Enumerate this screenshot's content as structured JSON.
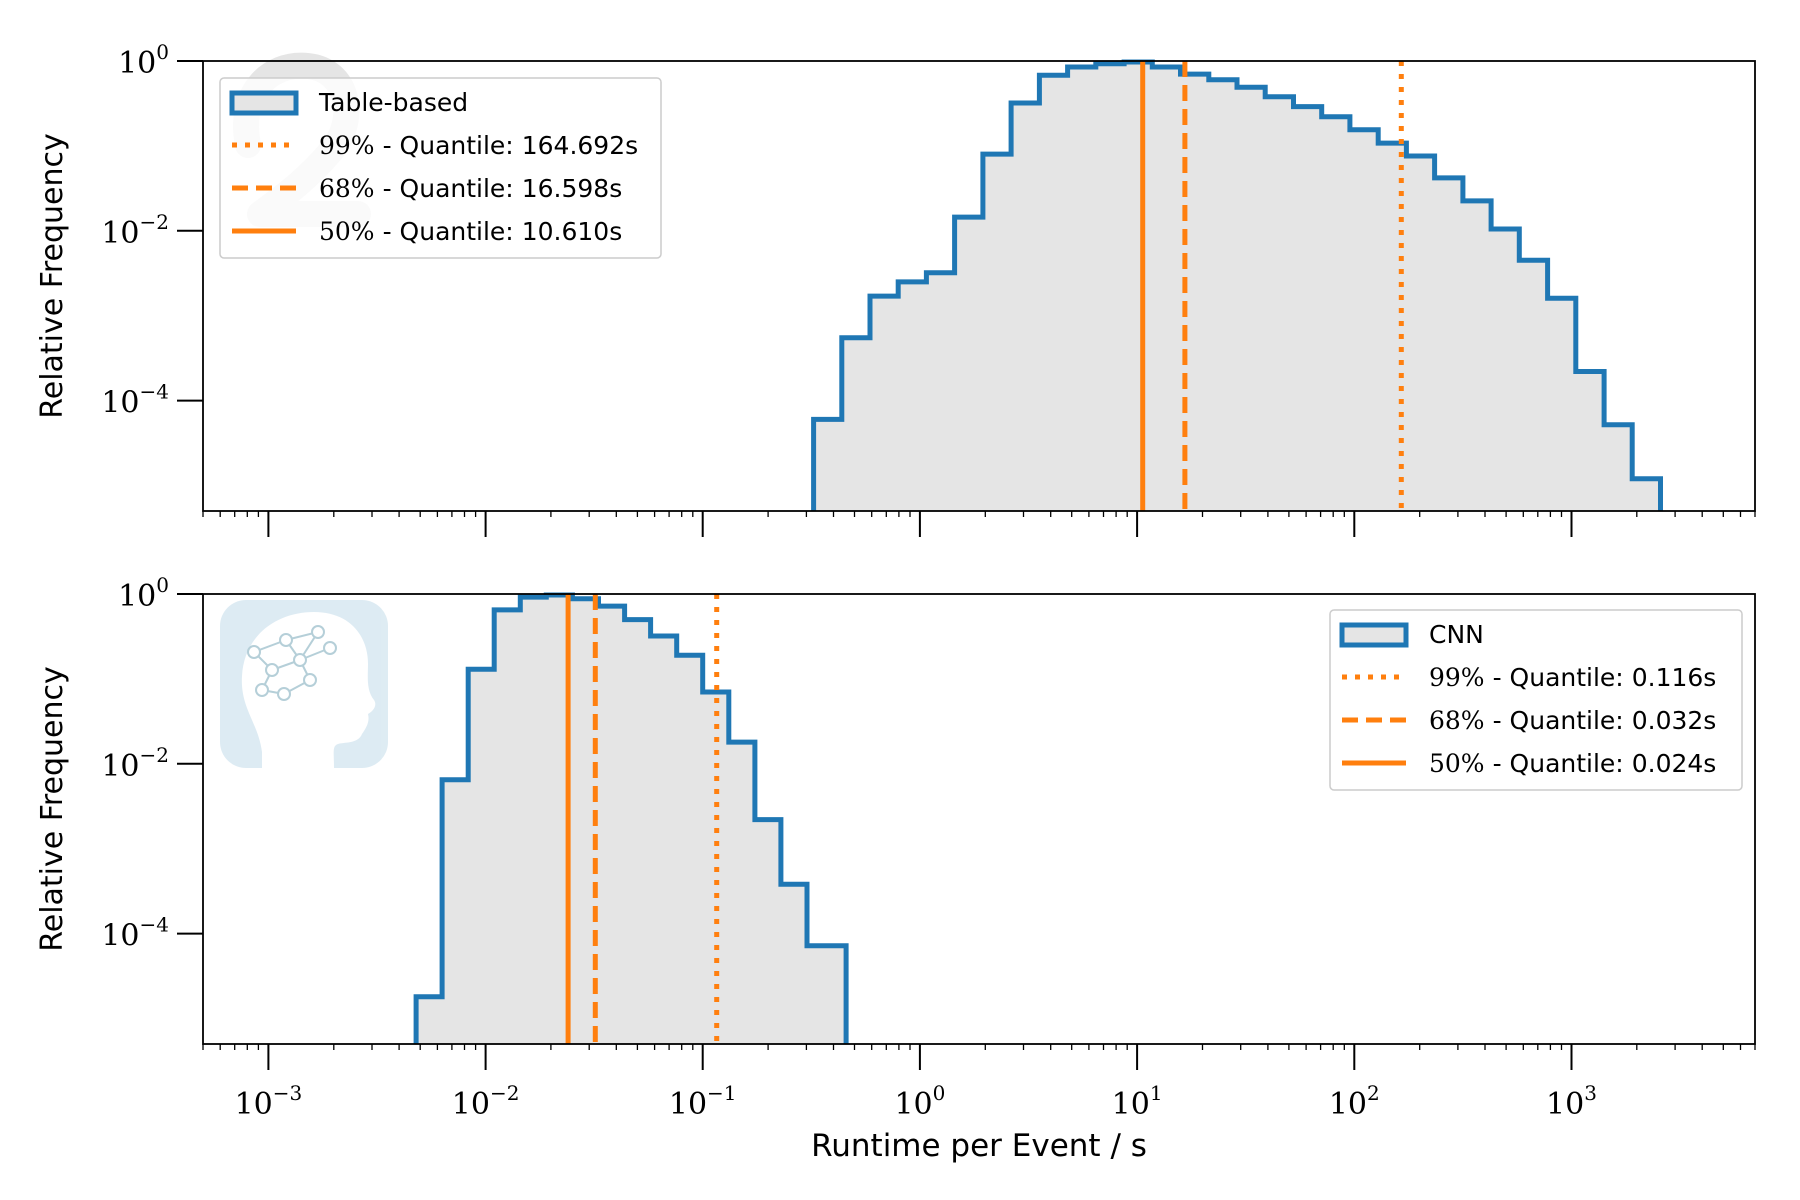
{
  "chart_data": [
    {
      "type": "histogram",
      "xscale": "log",
      "yscale": "log",
      "xlim": [
        0.0005,
        7000
      ],
      "ylim": [
        5e-06,
        1
      ],
      "xlabel": "",
      "ylabel": "Relative Frequency",
      "x_ticks": [
        "10^-3",
        "10^-2",
        "10^-1",
        "10^0",
        "10^1",
        "10^2",
        "10^3"
      ],
      "y_ticks": [
        "10^0",
        "10^-2",
        "10^-4"
      ],
      "legend_position": "upper left",
      "fill_color": "#e5e5e5",
      "edge_color": "#1f77b4",
      "quantile_color": "#ff7f0e",
      "series": [
        {
          "name": "Table-based",
          "bin_edges": [
            0.324,
            0.437,
            0.589,
            0.794,
            1.071,
            1.445,
            1.95,
            2.63,
            3.548,
            4.786,
            6.457,
            8.71,
            11.75,
            15.85,
            21.38,
            28.84,
            38.9,
            52.48,
            70.79,
            95.5,
            128.8,
            173.8,
            234.4,
            316.2,
            426.6,
            575.4,
            776.2,
            1047,
            1413,
            1905,
            2570
          ],
          "values": [
            6e-05,
            0.00055,
            0.0017,
            0.0025,
            0.0032,
            0.0145,
            0.08,
            0.32,
            0.68,
            0.85,
            0.93,
            0.98,
            0.85,
            0.7,
            0.6,
            0.49,
            0.38,
            0.29,
            0.22,
            0.155,
            0.108,
            0.076,
            0.042,
            0.0225,
            0.0105,
            0.0045,
            0.0016,
            0.00022,
            5.2e-05,
            1.2e-05
          ]
        }
      ],
      "quantiles": [
        {
          "label": "99%",
          "text": "- Quantile:",
          "value_label": "164.692s",
          "value": 164.692,
          "style": "dotted"
        },
        {
          "label": "68%",
          "text": "- Quantile:",
          "value_label": "16.598s",
          "value": 16.598,
          "style": "dashed"
        },
        {
          "label": "50%",
          "text": "- Quantile:",
          "value_label": "10.610s",
          "value": 10.61,
          "style": "solid"
        }
      ]
    },
    {
      "type": "histogram",
      "xscale": "log",
      "yscale": "log",
      "xlim": [
        0.0005,
        7000
      ],
      "ylim": [
        5e-06,
        1
      ],
      "xlabel": "Runtime per Event / s",
      "ylabel": "Relative Frequency",
      "x_ticks": [
        "10^-3",
        "10^-2",
        "10^-1",
        "10^0",
        "10^1",
        "10^2",
        "10^3"
      ],
      "y_ticks": [
        "10^0",
        "10^-2",
        "10^-4"
      ],
      "legend_position": "upper right",
      "fill_color": "#e5e5e5",
      "edge_color": "#1f77b4",
      "quantile_color": "#ff7f0e",
      "series": [
        {
          "name": "CNN",
          "bin_edges": [
            0.00479,
            0.00631,
            0.00832,
            0.01096,
            0.01445,
            0.01905,
            0.02512,
            0.03311,
            0.04365,
            0.05754,
            0.07586,
            0.1,
            0.1318,
            0.1738,
            0.2291,
            0.302,
            0.3981,
            0.4571
          ],
          "values": [
            1.8e-05,
            0.0065,
            0.13,
            0.65,
            0.92,
            1.0,
            0.88,
            0.72,
            0.5,
            0.32,
            0.19,
            0.07,
            0.018,
            0.0022,
            0.00038,
            7.2e-05,
            7.2e-05
          ]
        }
      ],
      "quantiles": [
        {
          "label": "99%",
          "text": "- Quantile:",
          "value_label": "0.116s",
          "value": 0.116,
          "style": "dotted"
        },
        {
          "label": "68%",
          "text": "- Quantile:",
          "value_label": "0.032s",
          "value": 0.032,
          "style": "dashed"
        },
        {
          "label": "50%",
          "text": "- Quantile:",
          "value_label": "0.024s",
          "value": 0.024,
          "style": "solid"
        }
      ]
    }
  ]
}
